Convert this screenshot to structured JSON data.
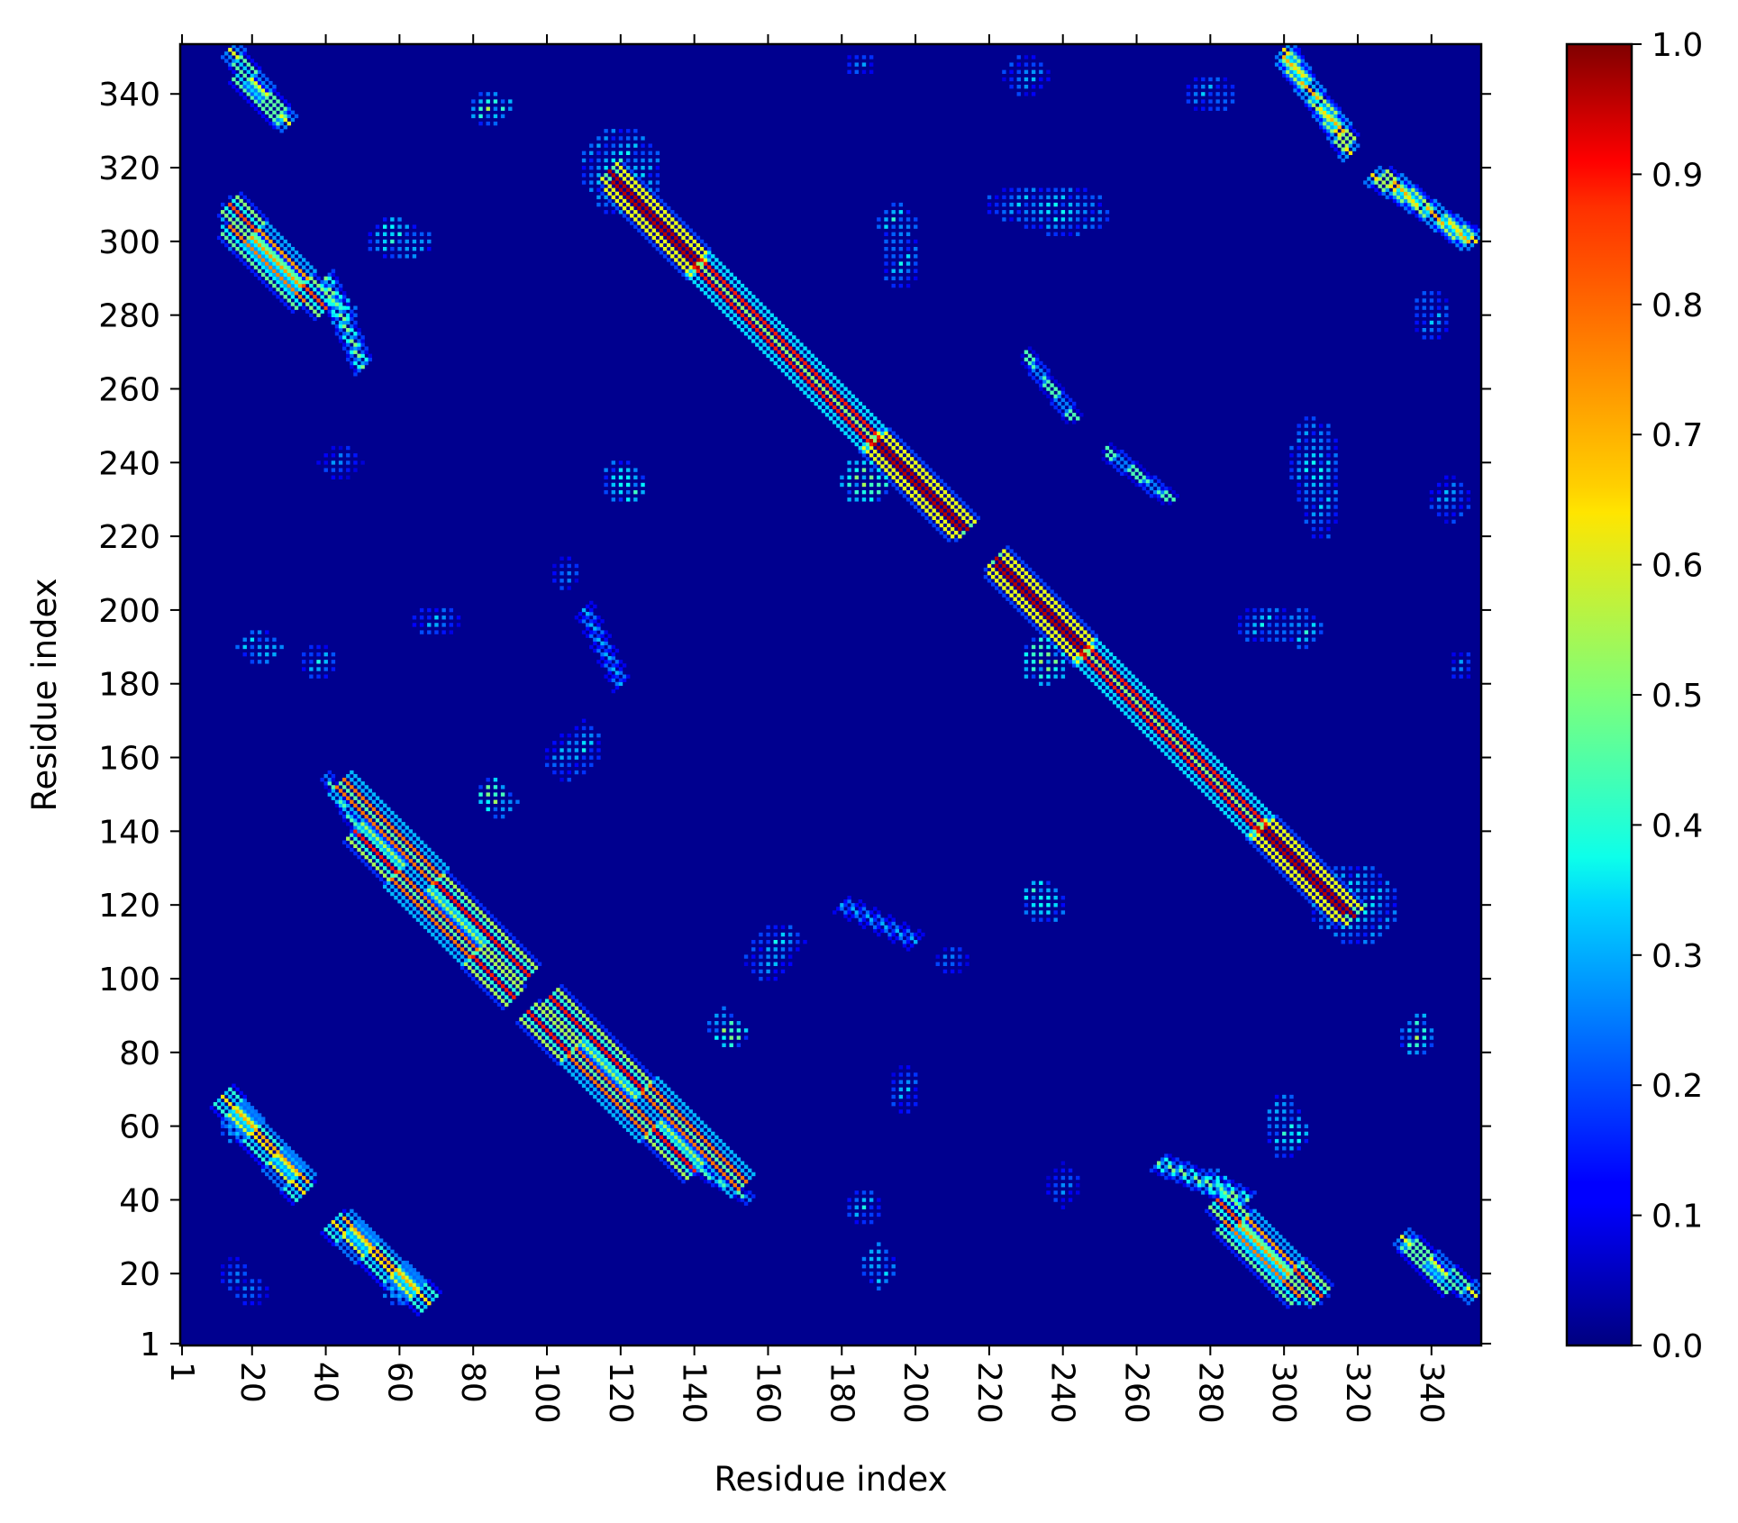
{
  "chart_data": {
    "type": "heatmap",
    "title": "",
    "xlabel": "Residue index",
    "ylabel": "Residue index",
    "residue_count": 353,
    "xlim": [
      1,
      353
    ],
    "ylim": [
      1,
      353
    ],
    "x_ticks": [
      1,
      20,
      40,
      60,
      80,
      100,
      120,
      140,
      160,
      180,
      200,
      220,
      240,
      260,
      280,
      300,
      320,
      340
    ],
    "y_ticks": [
      1,
      20,
      40,
      60,
      80,
      100,
      120,
      140,
      160,
      180,
      200,
      220,
      240,
      260,
      280,
      300,
      320,
      340
    ],
    "x_tick_rotation": "vertical",
    "colormap": "jet",
    "colorbar": {
      "range": [
        0.0,
        1.0
      ],
      "ticks": [
        "0.0",
        "0.1",
        "0.2",
        "0.3",
        "0.4",
        "0.5",
        "0.6",
        "0.7",
        "0.8",
        "0.9",
        "1.0"
      ],
      "placement": "right"
    },
    "background_value": 0.03,
    "contact_bands": [
      {
        "from": [
          14,
          304
        ],
        "to": [
          34,
          284
        ],
        "peak": 0.75,
        "spread": 3,
        "orientation": "anti"
      },
      {
        "from": [
          16,
          345
        ],
        "to": [
          28,
          333
        ],
        "peak": 0.6,
        "spread": 2,
        "orientation": "anti"
      },
      {
        "from": [
          16,
          64
        ],
        "to": [
          35,
          45
        ],
        "peak": 0.7,
        "spread": 2,
        "orientation": "anti"
      },
      {
        "from": [
          42,
          34
        ],
        "to": [
          68,
          12
        ],
        "peak": 0.65,
        "spread": 3,
        "orientation": "anti"
      },
      {
        "from": [
          44,
          153
        ],
        "to": [
          95,
          101
        ],
        "peak": 0.85,
        "spread": 3,
        "orientation": "anti"
      },
      {
        "from": [
          95,
          91
        ],
        "to": [
          140,
          48
        ],
        "peak": 0.85,
        "spread": 3,
        "orientation": "anti"
      },
      {
        "from": [
          117,
          319
        ],
        "to": [
          212,
          222
        ],
        "peak": 0.95,
        "spread": 3,
        "orientation": "anti"
      },
      {
        "from": [
          222,
          214
        ],
        "to": [
          316,
          118
        ],
        "peak": 0.95,
        "spread": 3,
        "orientation": "anti"
      },
      {
        "from": [
          282,
          40
        ],
        "to": [
          310,
          14
        ],
        "peak": 0.8,
        "spread": 3,
        "orientation": "anti"
      },
      {
        "from": [
          300,
          350
        ],
        "to": [
          318,
          327
        ],
        "peak": 0.7,
        "spread": 2,
        "orientation": "anti"
      },
      {
        "from": [
          324,
          318
        ],
        "to": [
          352,
          300
        ],
        "peak": 0.65,
        "spread": 2,
        "orientation": "anti"
      },
      {
        "from": [
          332,
          30
        ],
        "to": [
          352,
          14
        ],
        "peak": 0.6,
        "spread": 2,
        "orientation": "anti"
      },
      {
        "from": [
          252,
          242
        ],
        "to": [
          268,
          230
        ],
        "peak": 0.45,
        "spread": 1,
        "orientation": "anti"
      },
      {
        "from": [
          266,
          50
        ],
        "to": [
          290,
          40
        ],
        "peak": 0.5,
        "spread": 2,
        "orientation": "anti"
      },
      {
        "from": [
          138,
          50
        ],
        "to": [
          155,
          40
        ],
        "peak": 0.45,
        "spread": 1,
        "orientation": "anti"
      },
      {
        "from": [
          230,
          270
        ],
        "to": [
          244,
          252
        ],
        "peak": 0.45,
        "spread": 1,
        "orientation": "anti"
      },
      {
        "from": [
          180,
          120
        ],
        "to": [
          200,
          110
        ],
        "peak": 0.3,
        "spread": 2,
        "orientation": "anti"
      }
    ],
    "contact_patches": [
      {
        "center": [
          358,
          302
        ],
        "size": [
          14,
          10
        ],
        "peak": 0.35
      },
      {
        "center": [
          86,
          337
        ],
        "size": [
          8,
          6
        ],
        "peak": 0.55
      },
      {
        "center": [
          58,
          303
        ],
        "size": [
          10,
          8
        ],
        "peak": 0.45
      },
      {
        "center": [
          45,
          280
        ],
        "size": [
          8,
          10
        ],
        "peak": 0.5
      },
      {
        "center": [
          38,
          186
        ],
        "size": [
          10,
          8
        ],
        "peak": 0.4
      },
      {
        "center": [
          70,
          197
        ],
        "size": [
          12,
          8
        ],
        "peak": 0.35
      },
      {
        "center": [
          85,
          150
        ],
        "size": [
          8,
          8
        ],
        "peak": 0.6
      },
      {
        "center": [
          105,
          160
        ],
        "size": [
          10,
          12
        ],
        "peak": 0.35
      },
      {
        "center": [
          122,
          234
        ],
        "size": [
          10,
          10
        ],
        "peak": 0.55
      },
      {
        "center": [
          122,
          313
        ],
        "size": [
          18,
          12
        ],
        "peak": 0.45
      },
      {
        "center": [
          148,
          87
        ],
        "size": [
          8,
          10
        ],
        "peak": 0.55
      },
      {
        "center": [
          163,
          110
        ],
        "size": [
          14,
          8
        ],
        "peak": 0.4
      },
      {
        "center": [
          186,
          235
        ],
        "size": [
          12,
          12
        ],
        "peak": 0.55
      },
      {
        "center": [
          196,
          295
        ],
        "size": [
          10,
          14
        ],
        "peak": 0.4
      },
      {
        "center": [
          190,
          22
        ],
        "size": [
          8,
          12
        ],
        "peak": 0.45
      },
      {
        "center": [
          235,
          187
        ],
        "size": [
          12,
          14
        ],
        "peak": 0.6
      },
      {
        "center": [
          235,
          120
        ],
        "size": [
          10,
          10
        ],
        "peak": 0.45
      },
      {
        "center": [
          240,
          307
        ],
        "size": [
          24,
          10
        ],
        "peak": 0.4
      },
      {
        "center": [
          300,
          60
        ],
        "size": [
          10,
          16
        ],
        "peak": 0.45
      },
      {
        "center": [
          305,
          195
        ],
        "size": [
          10,
          10
        ],
        "peak": 0.45
      },
      {
        "center": [
          310,
          235
        ],
        "size": [
          10,
          30
        ],
        "peak": 0.4
      },
      {
        "center": [
          320,
          120
        ],
        "size": [
          20,
          20
        ],
        "peak": 0.45
      },
      {
        "center": [
          336,
          84
        ],
        "size": [
          8,
          10
        ],
        "peak": 0.55
      },
      {
        "center": [
          340,
          280
        ],
        "size": [
          10,
          14
        ],
        "peak": 0.35
      },
      {
        "center": [
          345,
          230
        ],
        "size": [
          10,
          12
        ],
        "peak": 0.35
      },
      {
        "center": [
          348,
          185
        ],
        "size": [
          6,
          8
        ],
        "peak": 0.3
      },
      {
        "center": [
          62,
          15
        ],
        "size": [
          12,
          8
        ],
        "peak": 0.45
      },
      {
        "center": [
          305,
          15
        ],
        "size": [
          14,
          8
        ],
        "peak": 0.5
      },
      {
        "center": [
          20,
          15
        ],
        "size": [
          10,
          8
        ],
        "peak": 0.3
      },
      {
        "center": [
          44,
          240
        ],
        "size": [
          12,
          8
        ],
        "peak": 0.3
      },
      {
        "center": [
          210,
          105
        ],
        "size": [
          10,
          8
        ],
        "peak": 0.3
      }
    ]
  }
}
